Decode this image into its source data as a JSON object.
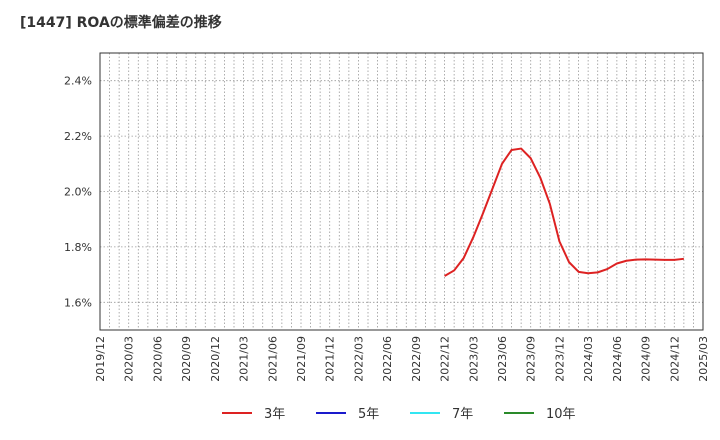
{
  "chart_data": {
    "type": "line",
    "title": "[1447]  ROAの標準偏差の推移",
    "xlabel": "",
    "ylabel": "",
    "x_ticks": [
      "2019/12",
      "2020/03",
      "2020/06",
      "2020/09",
      "2020/12",
      "2021/03",
      "2021/06",
      "2021/09",
      "2021/12",
      "2022/03",
      "2022/06",
      "2022/09",
      "2022/12",
      "2023/03",
      "2023/06",
      "2023/09",
      "2023/12",
      "2024/03",
      "2024/06",
      "2024/09",
      "2024/12",
      "2025/03"
    ],
    "y_ticks": [
      1.6,
      1.8,
      2.0,
      2.2,
      2.4
    ],
    "y_tick_labels": [
      "1.6%",
      "1.8%",
      "2.0%",
      "2.2%",
      "2.4%"
    ],
    "ylim": [
      1.5,
      2.5
    ],
    "xlim": [
      0,
      63
    ],
    "grid": true,
    "legend_position": "bottom",
    "series": [
      {
        "name": "3年",
        "color": "#dd2222",
        "points": [
          [
            36,
            1.695
          ],
          [
            37,
            1.715
          ],
          [
            38,
            1.76
          ],
          [
            39,
            1.835
          ],
          [
            40,
            1.92
          ],
          [
            41,
            2.01
          ],
          [
            42,
            2.1
          ],
          [
            43,
            2.15
          ],
          [
            44,
            2.155
          ],
          [
            45,
            2.12
          ],
          [
            46,
            2.05
          ],
          [
            47,
            1.955
          ],
          [
            48,
            1.82
          ],
          [
            49,
            1.745
          ],
          [
            50,
            1.71
          ],
          [
            51,
            1.705
          ],
          [
            52,
            1.708
          ],
          [
            53,
            1.72
          ],
          [
            54,
            1.74
          ],
          [
            55,
            1.75
          ],
          [
            56,
            1.754
          ],
          [
            57,
            1.755
          ],
          [
            58,
            1.754
          ],
          [
            59,
            1.753
          ],
          [
            60,
            1.753
          ],
          [
            61,
            1.757
          ]
        ]
      },
      {
        "name": "5年",
        "color": "#1a1acc",
        "points": []
      },
      {
        "name": "7年",
        "color": "#33e6f2",
        "points": []
      },
      {
        "name": "10年",
        "color": "#2a8a2a",
        "points": []
      }
    ]
  }
}
